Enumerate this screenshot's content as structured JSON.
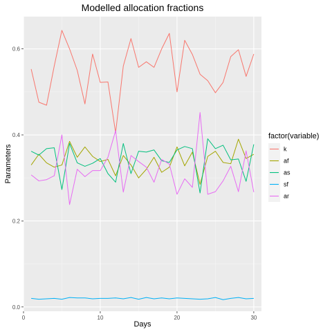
{
  "chart_data": {
    "type": "line",
    "title": "Modelled allocation fractions",
    "xlabel": "Days",
    "ylabel": "Parameters",
    "xlim": [
      0,
      31
    ],
    "ylim": [
      -0.01,
      0.675
    ],
    "x_ticks": [
      0,
      10,
      20,
      30
    ],
    "x_tick_labels": [
      "0",
      "10",
      "20",
      "30"
    ],
    "y_ticks": [
      0.0,
      0.2,
      0.4,
      0.6
    ],
    "y_tick_labels": [
      "0.0",
      "0.2",
      "0.4",
      "0.6"
    ],
    "grid": true,
    "legend": {
      "title": "factor(variable)",
      "position": "right"
    },
    "x": [
      1,
      2,
      3,
      4,
      5,
      6,
      7,
      8,
      9,
      10,
      11,
      12,
      13,
      14,
      15,
      16,
      17,
      18,
      19,
      20,
      21,
      22,
      23,
      24,
      25,
      26,
      27,
      28,
      29,
      30
    ],
    "series": [
      {
        "name": "k",
        "color": "#F8766D",
        "values": [
          0.553,
          0.476,
          0.469,
          0.56,
          0.643,
          0.6,
          0.55,
          0.472,
          0.588,
          0.522,
          0.523,
          0.405,
          0.56,
          0.624,
          0.557,
          0.57,
          0.557,
          0.6,
          0.636,
          0.5,
          0.62,
          0.587,
          0.541,
          0.526,
          0.498,
          0.522,
          0.582,
          0.598,
          0.536,
          0.588
        ]
      },
      {
        "name": "af",
        "color": "#A3A500",
        "values": [
          0.33,
          0.355,
          0.335,
          0.325,
          0.33,
          0.385,
          0.348,
          0.372,
          0.35,
          0.338,
          0.343,
          0.305,
          0.352,
          0.33,
          0.3,
          0.32,
          0.348,
          0.313,
          0.325,
          0.372,
          0.328,
          0.36,
          0.285,
          0.35,
          0.362,
          0.336,
          0.333,
          0.39,
          0.345,
          0.355
        ]
      },
      {
        "name": "as",
        "color": "#00BF7D",
        "values": [
          0.362,
          0.353,
          0.368,
          0.37,
          0.273,
          0.38,
          0.335,
          0.327,
          0.334,
          0.345,
          0.31,
          0.29,
          0.38,
          0.31,
          0.362,
          0.36,
          0.365,
          0.34,
          0.336,
          0.365,
          0.373,
          0.368,
          0.265,
          0.391,
          0.368,
          0.376,
          0.342,
          0.344,
          0.292,
          0.378
        ]
      },
      {
        "name": "sf",
        "color": "#00B0F6",
        "values": [
          0.02,
          0.018,
          0.019,
          0.02,
          0.018,
          0.022,
          0.021,
          0.021,
          0.019,
          0.02,
          0.02,
          0.021,
          0.019,
          0.022,
          0.018,
          0.022,
          0.019,
          0.021,
          0.019,
          0.021,
          0.02,
          0.019,
          0.018,
          0.019,
          0.022,
          0.017,
          0.02,
          0.022,
          0.019,
          0.02
        ]
      },
      {
        "name": "ar",
        "color": "#E76BF3",
        "values": [
          0.307,
          0.293,
          0.296,
          0.305,
          0.4,
          0.238,
          0.32,
          0.303,
          0.317,
          0.317,
          0.348,
          0.41,
          0.267,
          0.352,
          0.338,
          0.325,
          0.29,
          0.343,
          0.332,
          0.262,
          0.298,
          0.278,
          0.452,
          0.262,
          0.268,
          0.293,
          0.327,
          0.268,
          0.363,
          0.267
        ]
      }
    ]
  }
}
